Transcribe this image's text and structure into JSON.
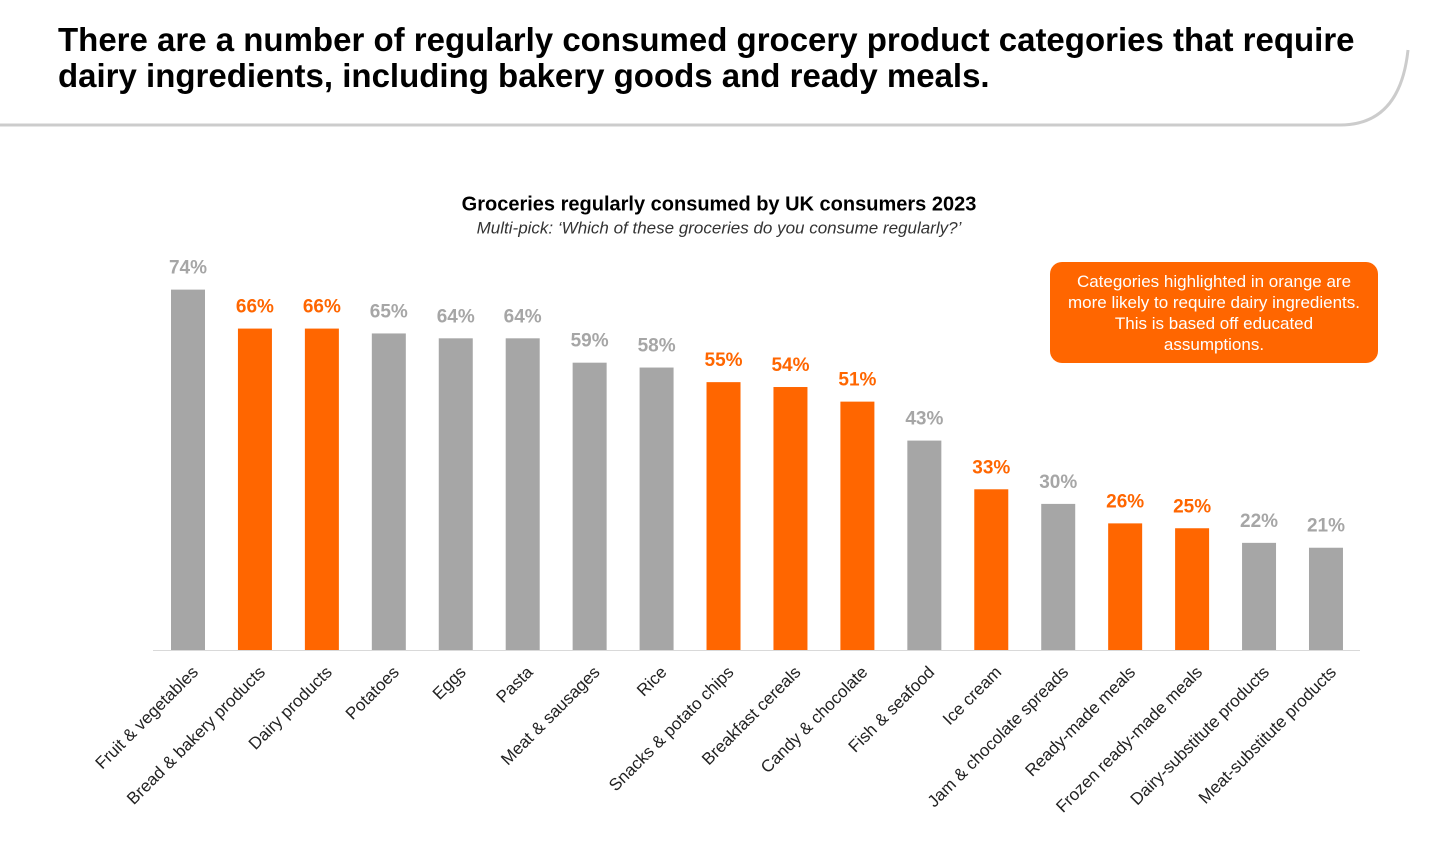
{
  "header": {
    "title": "There are a number of regularly consumed grocery product categories that require dairy ingredients, including bakery goods and ready meals."
  },
  "chart_data": {
    "type": "bar",
    "title": "Groceries regularly consumed by UK consumers 2023",
    "subtitle": "Multi-pick: ‘Which of these groceries do you consume regularly?’",
    "annotation": "Categories highlighted in orange are more likely to require dairy ingredients. This is based off educated assumptions.",
    "categories": [
      "Fruit & vegetables",
      "Bread & bakery products",
      "Dairy products",
      "Potatoes",
      "Eggs",
      "Pasta",
      "Meat & sausages",
      "Rice",
      "Snacks & potato chips",
      "Breakfast cereals",
      "Candy & chocolate",
      "Fish & seafood",
      "Ice cream",
      "Jam & chocolate spreads",
      "Ready-made meals",
      "Frozen ready-made meals",
      "Dairy-substitute products",
      "Meat-substitute products"
    ],
    "values": [
      74,
      66,
      66,
      65,
      64,
      64,
      59,
      58,
      55,
      54,
      51,
      43,
      33,
      30,
      26,
      25,
      22,
      21
    ],
    "value_labels": [
      "74%",
      "66%",
      "66%",
      "65%",
      "64%",
      "64%",
      "59%",
      "58%",
      "55%",
      "54%",
      "51%",
      "43%",
      "33%",
      "30%",
      "26%",
      "25%",
      "22%",
      "21%"
    ],
    "colors": [
      "#a6a6a6",
      "#ff6600",
      "#ff6600",
      "#a6a6a6",
      "#a6a6a6",
      "#a6a6a6",
      "#a6a6a6",
      "#a6a6a6",
      "#ff6600",
      "#ff6600",
      "#ff6600",
      "#a6a6a6",
      "#ff6600",
      "#a6a6a6",
      "#ff6600",
      "#ff6600",
      "#a6a6a6",
      "#a6a6a6"
    ]
  }
}
